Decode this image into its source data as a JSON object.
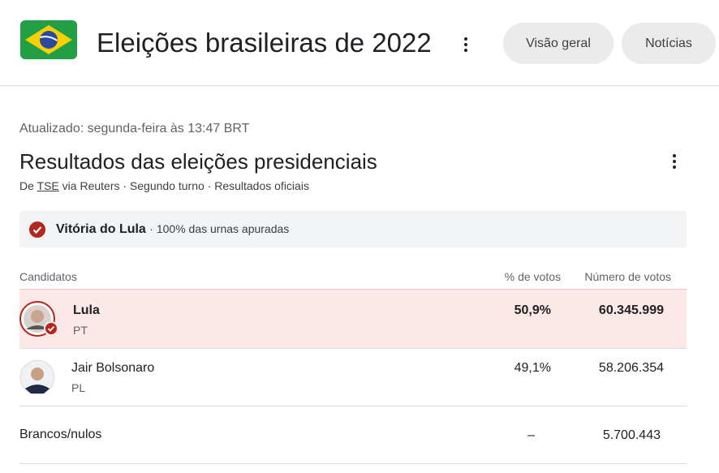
{
  "header": {
    "title": "Eleições brasileiras de 2022",
    "tabs": [
      "Visão geral",
      "Notícias"
    ]
  },
  "updated": "Atualizado: segunda-feira às 13:47 BRT",
  "heading": "Resultados das eleições presidenciais",
  "source": {
    "prefix": "De",
    "link": "TSE",
    "rest": "via Reuters · Segundo turno · Resultados oficiais"
  },
  "banner": {
    "winner": "Vitória do Lula",
    "detail": "· 100% das urnas apuradas"
  },
  "table": {
    "columns": [
      "Candidatos",
      "% de votos",
      "Número de votos"
    ],
    "rows": [
      {
        "name": "Lula",
        "party": "PT",
        "percent": "50,9%",
        "votes": "60.345.999"
      },
      {
        "name": "Jair Bolsonaro",
        "party": "PL",
        "percent": "49,1%",
        "votes": "58.206.354"
      },
      {
        "name": "Brancos/nulos",
        "percent": "–",
        "votes": "5.700.443"
      }
    ]
  }
}
